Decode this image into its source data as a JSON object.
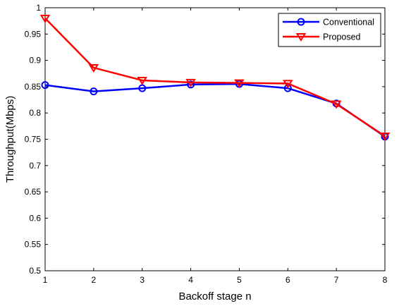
{
  "chart_data": {
    "type": "line",
    "title": "",
    "xlabel": "Backoff stage n",
    "ylabel": "Throughput(Mbps)",
    "x": [
      1,
      2,
      3,
      4,
      5,
      6,
      7,
      8
    ],
    "xlim": [
      1,
      8
    ],
    "ylim": [
      0.5,
      1
    ],
    "xticks": [
      "1",
      "2",
      "3",
      "4",
      "5",
      "6",
      "7",
      "8"
    ],
    "yticks": [
      "0.5",
      "0.55",
      "0.6",
      "0.65",
      "0.7",
      "0.75",
      "0.8",
      "0.85",
      "0.9",
      "0.95",
      "1"
    ],
    "grid": false,
    "legend_position": "top-right",
    "series": [
      {
        "name": "Conventional",
        "color": "#0000ff",
        "marker": "circle",
        "values": [
          0.853,
          0.841,
          0.847,
          0.854,
          0.855,
          0.847,
          0.818,
          0.755
        ]
      },
      {
        "name": "Proposed",
        "color": "#ff0000",
        "marker": "triangle-down",
        "values": [
          0.98,
          0.886,
          0.862,
          0.858,
          0.857,
          0.856,
          0.817,
          0.756
        ]
      }
    ]
  }
}
